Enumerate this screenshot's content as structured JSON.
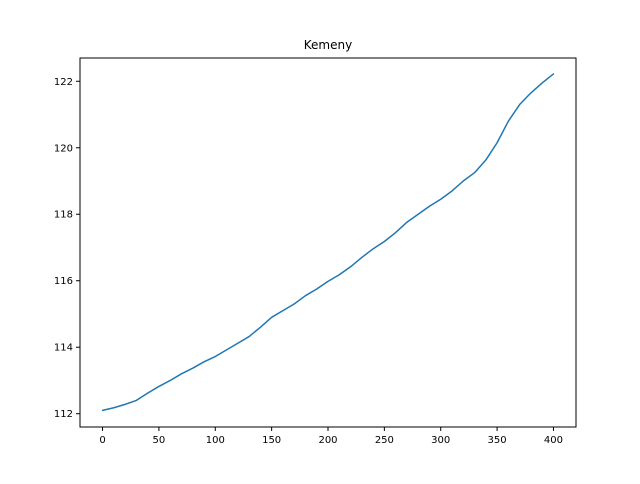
{
  "chart_data": {
    "type": "line",
    "title": "Kemeny",
    "xlabel": "",
    "ylabel": "",
    "xlim": [
      -20,
      420
    ],
    "ylim": [
      111.6,
      122.7
    ],
    "x_ticks": [
      0,
      50,
      100,
      150,
      200,
      250,
      300,
      350,
      400
    ],
    "y_ticks": [
      112,
      114,
      116,
      118,
      120,
      122
    ],
    "grid": false,
    "legend": "none",
    "line_color": "#1f77b4",
    "series": [
      {
        "x": [
          0,
          10,
          20,
          30,
          40,
          50,
          60,
          70,
          80,
          90,
          100,
          110,
          120,
          130,
          140,
          150,
          160,
          170,
          180,
          190,
          200,
          210,
          220,
          230,
          240,
          250,
          260,
          270,
          280,
          290,
          300,
          310,
          320,
          330,
          340,
          350,
          360,
          370,
          380,
          390,
          400
        ],
        "y": [
          112.1,
          112.18,
          112.28,
          112.4,
          112.62,
          112.82,
          113.0,
          113.2,
          113.37,
          113.56,
          113.72,
          113.92,
          114.12,
          114.32,
          114.6,
          114.9,
          115.1,
          115.3,
          115.55,
          115.75,
          115.98,
          116.18,
          116.42,
          116.7,
          116.96,
          117.18,
          117.45,
          117.76,
          118.0,
          118.24,
          118.45,
          118.7,
          119.0,
          119.25,
          119.63,
          120.15,
          120.8,
          121.3,
          121.65,
          121.95,
          122.22
        ]
      }
    ]
  }
}
